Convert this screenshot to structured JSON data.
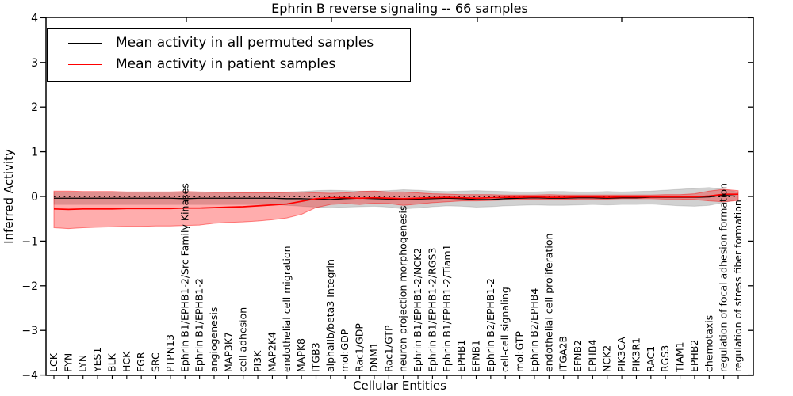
{
  "chart_data": {
    "type": "line",
    "title": "Ephrin B reverse signaling -- 66 samples",
    "xlabel": "Cellular Entities",
    "ylabel": "Inferred Activity",
    "ylim": [
      -4,
      4
    ],
    "yticks": [
      -4,
      -3,
      -2,
      -1,
      0,
      1,
      2,
      3,
      4
    ],
    "grid": false,
    "legend_position": "upper left",
    "zero_line": 0,
    "categories": [
      "LCK",
      "FYN",
      "LYN",
      "YES1",
      "BLK",
      "HCK",
      "FGR",
      "SRC",
      "PTPN13",
      "Ephrin B1/EPHB1-2/Src Family Kinases",
      "Ephrin B1/EPHB1-2",
      "angiogenesis",
      "MAP3K7",
      "cell adhesion",
      "PI3K",
      "MAP2K4",
      "endothelial cell migration",
      "MAPK8",
      "ITGB3",
      "alphaIIb/beta3 Integrin",
      "mol:GDP",
      "Rac1/GDP",
      "DNM1",
      "Rac1/GTP",
      "neuron projection morphogenesis",
      "Ephrin B1/EPHB1-2/NCK2",
      "Ephrin B1/EPHB1-2/RGS3",
      "Ephrin B1/EPHB1-2/Tiam1",
      "EPHB1",
      "EFNB1",
      "Ephrin B2/EPHB1-2",
      "cell-cell signaling",
      "mol:GTP",
      "Ephrin B2/EPHB4",
      "endothelial cell proliferation",
      "ITGA2B",
      "EFNB2",
      "EPHB4",
      "NCK2",
      "PIK3CA",
      "PIK3R1",
      "RAC1",
      "RGS3",
      "TIAM1",
      "EPHB2",
      "chemotaxis",
      "regulation of focal adhesion formation",
      "regulation of stress fiber formation"
    ],
    "series": [
      {
        "name": "Mean activity in all permuted samples",
        "color": "#000000",
        "band_color": "rgba(0,0,0,0.18)",
        "values": [
          -0.04,
          -0.04,
          -0.04,
          -0.04,
          -0.04,
          -0.04,
          -0.04,
          -0.04,
          -0.04,
          -0.05,
          -0.04,
          -0.04,
          -0.04,
          -0.04,
          -0.04,
          -0.04,
          -0.05,
          -0.05,
          -0.06,
          -0.07,
          -0.05,
          -0.04,
          -0.05,
          -0.06,
          -0.07,
          -0.06,
          -0.05,
          -0.04,
          -0.05,
          -0.07,
          -0.07,
          -0.05,
          -0.04,
          -0.03,
          -0.04,
          -0.04,
          -0.03,
          -0.03,
          -0.04,
          -0.03,
          -0.03,
          -0.02,
          -0.02,
          -0.02,
          -0.02,
          -0.01,
          0.03,
          0.05
        ],
        "band_upper": [
          0.1,
          0.1,
          0.1,
          0.1,
          0.1,
          0.1,
          0.1,
          0.1,
          0.1,
          0.1,
          0.1,
          0.1,
          0.1,
          0.1,
          0.1,
          0.1,
          0.1,
          0.11,
          0.13,
          0.14,
          0.13,
          0.12,
          0.12,
          0.13,
          0.15,
          0.14,
          0.12,
          0.11,
          0.12,
          0.13,
          0.12,
          0.11,
          0.1,
          0.1,
          0.11,
          0.11,
          0.1,
          0.1,
          0.11,
          0.1,
          0.11,
          0.12,
          0.14,
          0.16,
          0.18,
          0.2,
          0.16,
          0.1
        ],
        "band_lower": [
          -0.18,
          -0.18,
          -0.18,
          -0.18,
          -0.18,
          -0.18,
          -0.18,
          -0.18,
          -0.18,
          -0.18,
          -0.18,
          -0.18,
          -0.18,
          -0.18,
          -0.18,
          -0.18,
          -0.2,
          -0.22,
          -0.24,
          -0.26,
          -0.24,
          -0.23,
          -0.22,
          -0.24,
          -0.28,
          -0.26,
          -0.23,
          -0.21,
          -0.22,
          -0.24,
          -0.23,
          -0.21,
          -0.2,
          -0.19,
          -0.2,
          -0.2,
          -0.19,
          -0.18,
          -0.19,
          -0.18,
          -0.18,
          -0.17,
          -0.19,
          -0.21,
          -0.22,
          -0.2,
          -0.14,
          -0.07
        ]
      },
      {
        "name": "Mean activity in patient samples",
        "color": "#ff0000",
        "band_color": "rgba(255,0,0,0.32)",
        "values": [
          -0.28,
          -0.29,
          -0.28,
          -0.28,
          -0.28,
          -0.27,
          -0.27,
          -0.27,
          -0.27,
          -0.26,
          -0.26,
          -0.25,
          -0.24,
          -0.23,
          -0.21,
          -0.19,
          -0.17,
          -0.11,
          -0.05,
          -0.03,
          -0.03,
          -0.04,
          -0.03,
          -0.04,
          -0.05,
          -0.04,
          -0.03,
          -0.02,
          -0.03,
          -0.04,
          -0.03,
          -0.02,
          -0.02,
          -0.01,
          -0.02,
          -0.02,
          -0.01,
          -0.01,
          -0.02,
          -0.01,
          -0.01,
          -0.01,
          -0.01,
          -0.01,
          -0.01,
          0.01,
          0.05,
          0.05
        ],
        "band_upper": [
          0.12,
          0.12,
          0.11,
          0.11,
          0.11,
          0.1,
          0.1,
          0.1,
          0.1,
          0.11,
          0.1,
          0.09,
          0.09,
          0.08,
          0.08,
          0.08,
          0.09,
          0.1,
          0.08,
          0.07,
          0.08,
          0.11,
          0.12,
          0.1,
          0.1,
          0.08,
          0.06,
          0.05,
          0.04,
          0.04,
          0.04,
          0.03,
          0.03,
          0.03,
          0.04,
          0.03,
          0.03,
          0.03,
          0.03,
          0.03,
          0.03,
          0.03,
          0.04,
          0.04,
          0.06,
          0.12,
          0.16,
          0.13
        ],
        "band_lower": [
          -0.7,
          -0.72,
          -0.7,
          -0.69,
          -0.68,
          -0.67,
          -0.67,
          -0.66,
          -0.66,
          -0.65,
          -0.64,
          -0.6,
          -0.58,
          -0.57,
          -0.55,
          -0.52,
          -0.48,
          -0.4,
          -0.25,
          -0.18,
          -0.16,
          -0.18,
          -0.15,
          -0.16,
          -0.2,
          -0.17,
          -0.14,
          -0.12,
          -0.1,
          -0.1,
          -0.09,
          -0.08,
          -0.07,
          -0.06,
          -0.07,
          -0.07,
          -0.06,
          -0.06,
          -0.06,
          -0.05,
          -0.05,
          -0.05,
          -0.06,
          -0.06,
          -0.07,
          -0.1,
          -0.12,
          -0.09
        ]
      }
    ]
  },
  "legend": {
    "items": [
      {
        "label": "Mean activity in all permuted samples",
        "color": "#000000"
      },
      {
        "label": "Mean activity in patient samples",
        "color": "#ff0000"
      }
    ]
  },
  "colors": {
    "axis": "#000000",
    "zero_line": "#000000",
    "background": "#ffffff"
  }
}
